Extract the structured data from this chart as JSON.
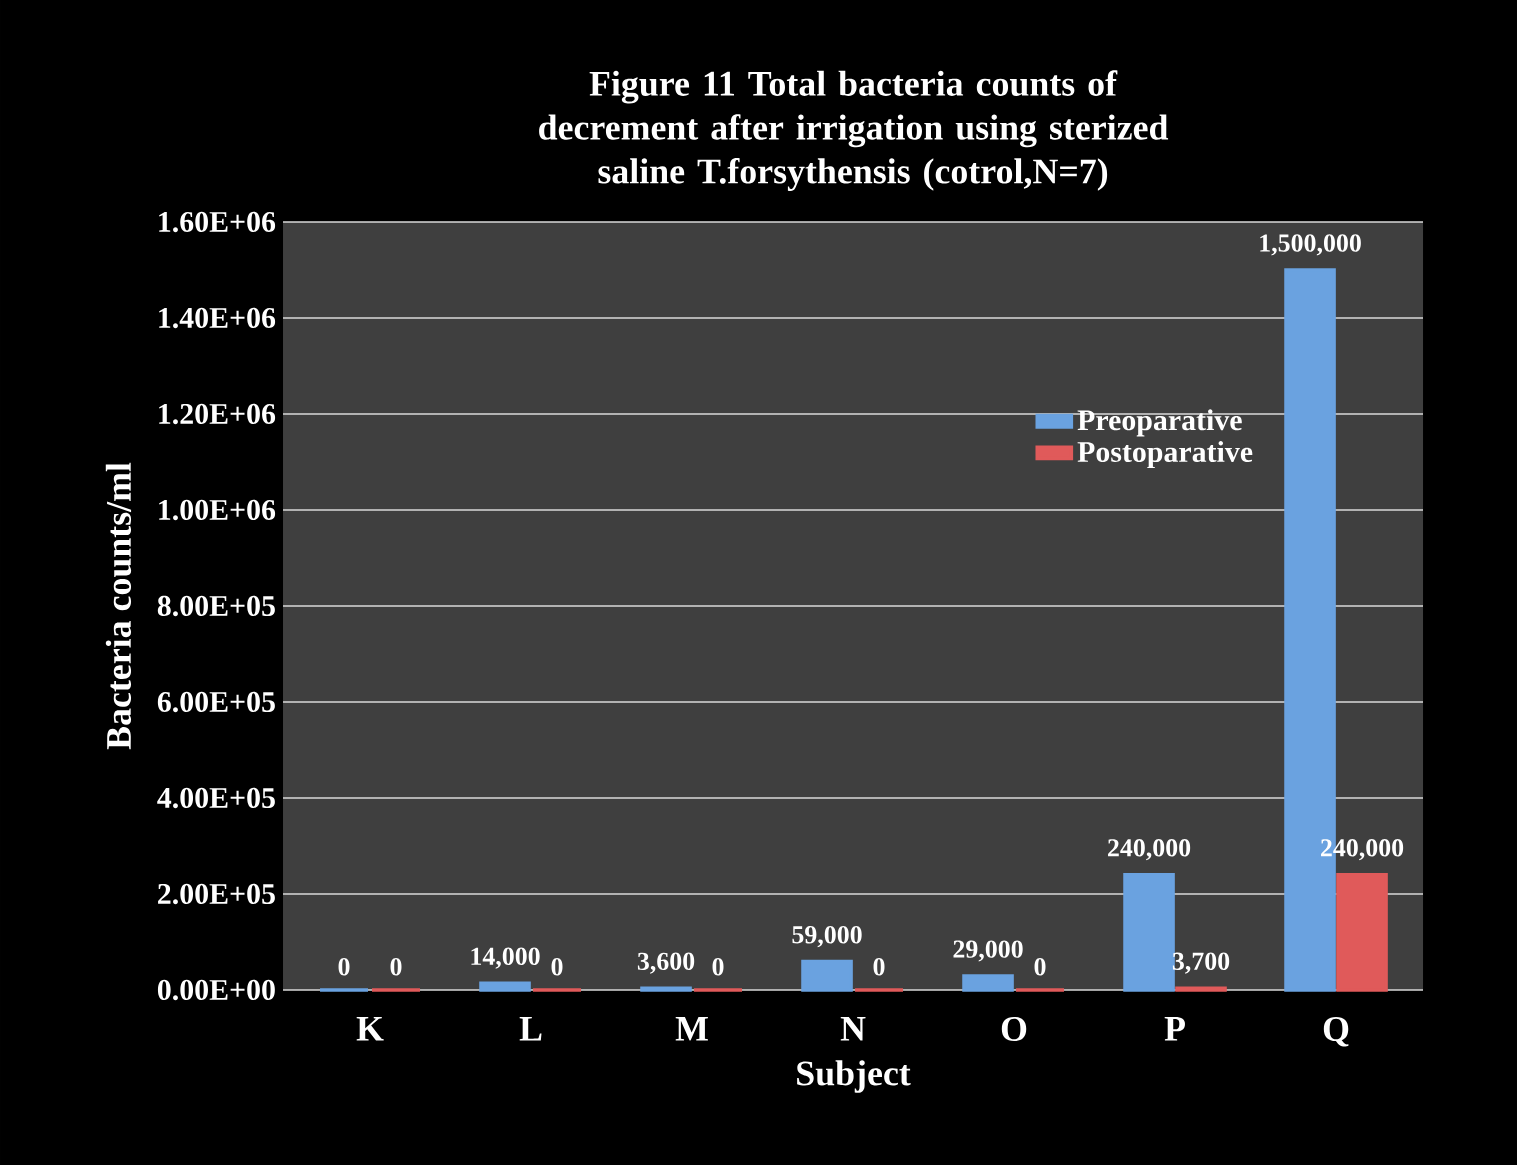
{
  "chart_data": {
    "type": "bar",
    "title": "Figure 11     Total bacteria counts of decrement after irrigation using sterized saline T.forsythensis  (cotrol,N=7)",
    "xlabel": "Subject",
    "ylabel": "Bacteria counts/ml",
    "categories": [
      "K",
      "L",
      "M",
      "N",
      "O",
      "P",
      "Q"
    ],
    "series": [
      {
        "name": "Preoparative",
        "color": "#6aa2e0",
        "values": [
          0,
          14000,
          3600,
          59000,
          29000,
          240000,
          1500000
        ],
        "value_labels": [
          "0",
          "14,000",
          "3,600",
          "59,000",
          "29,000",
          "240,000",
          "1,500,000"
        ]
      },
      {
        "name": "Postoparative",
        "color": "#e05a5a",
        "values": [
          0,
          0,
          0,
          0,
          0,
          3700,
          240000
        ],
        "value_labels": [
          "0",
          "0",
          "0",
          "0",
          "0",
          "3,700",
          "240,000"
        ]
      }
    ],
    "ylim": [
      0,
      1600000
    ],
    "yticks": [
      {
        "value": 0,
        "label": "0.00E+00"
      },
      {
        "value": 200000,
        "label": "2.00E+05"
      },
      {
        "value": 400000,
        "label": "4.00E+05"
      },
      {
        "value": 600000,
        "label": "6.00E+05"
      },
      {
        "value": 800000,
        "label": "8.00E+05"
      },
      {
        "value": 1000000,
        "label": "1.00E+06"
      },
      {
        "value": 1200000,
        "label": "1.20E+06"
      },
      {
        "value": 1400000,
        "label": "1.40E+06"
      },
      {
        "value": 1600000,
        "label": "1.60E+06"
      }
    ],
    "grid": "y",
    "legend": "right"
  }
}
